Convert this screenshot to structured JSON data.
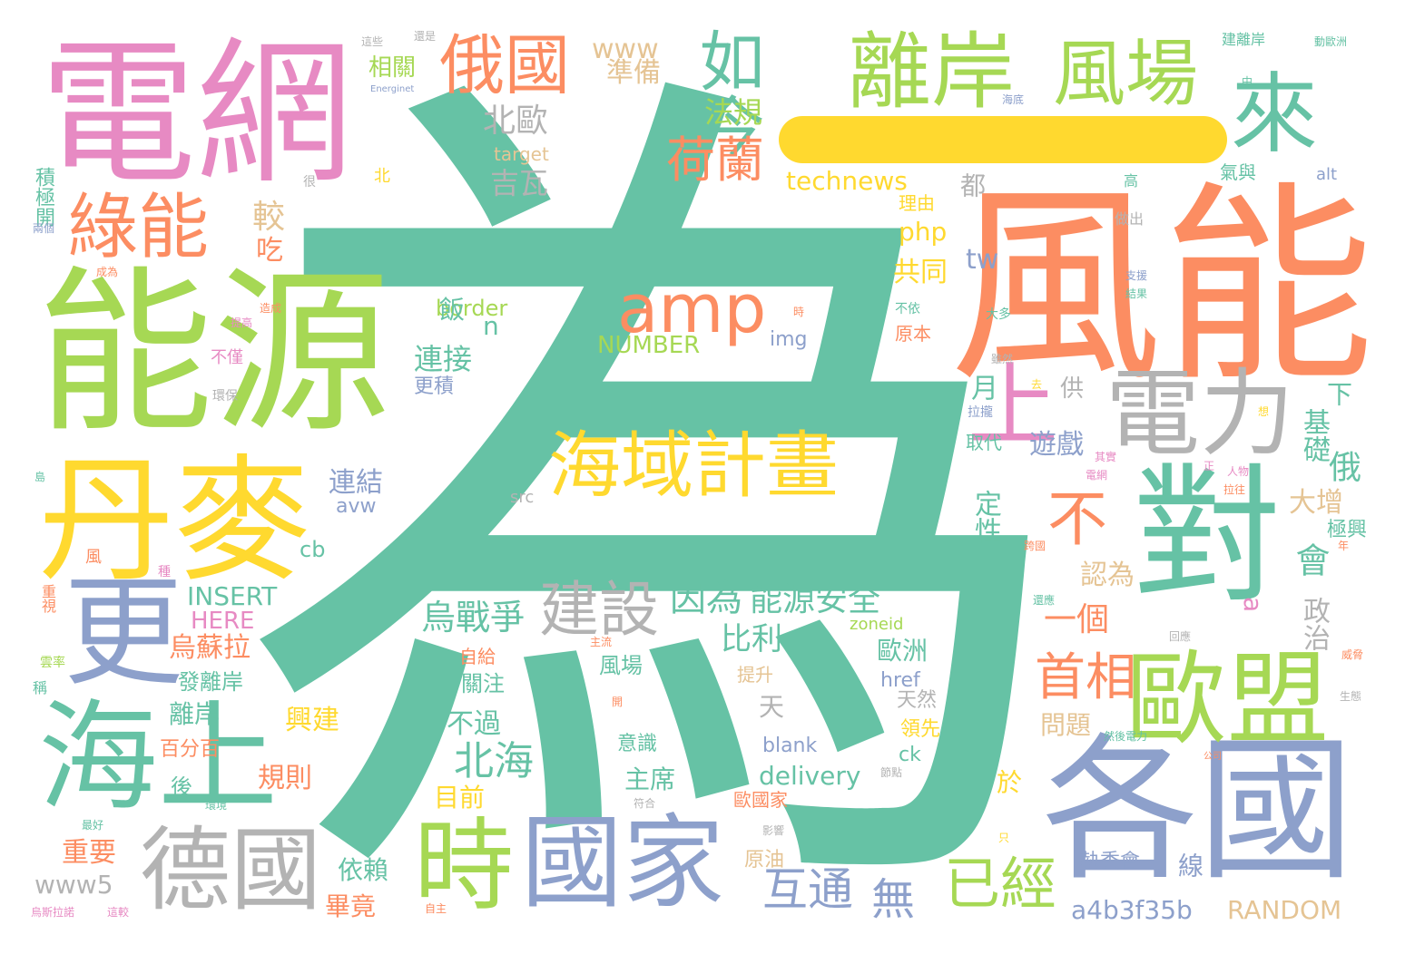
{
  "palette": {
    "teal": "#66c2a5",
    "orange": "#fc8d62",
    "blue": "#8da0cb",
    "pink": "#e78ac3",
    "green": "#a6d854",
    "yellow": "#ffd92f",
    "tan": "#e5c494",
    "gray": "#b3b3b3"
  },
  "words": [
    {
      "text": "為",
      "color": "teal"
    },
    {
      "text": "風能",
      "color": "orange"
    },
    {
      "text": "能源",
      "color": "green"
    },
    {
      "text": "電網",
      "color": "pink"
    },
    {
      "text": "丹麥",
      "color": "yellow"
    },
    {
      "text": "各國",
      "color": "blue"
    },
    {
      "text": "更",
      "color": "blue"
    },
    {
      "text": "海上",
      "color": "teal"
    },
    {
      "text": "對",
      "color": "teal"
    },
    {
      "text": "國家",
      "color": "blue"
    },
    {
      "text": "德國",
      "color": "gray"
    },
    {
      "text": "歐盟",
      "color": "green"
    },
    {
      "text": "時",
      "color": "green"
    },
    {
      "text": "離岸",
      "color": "green"
    },
    {
      "text": "風場",
      "color": "green"
    },
    {
      "text": "電力",
      "color": "gray"
    },
    {
      "text": "來",
      "color": "teal"
    },
    {
      "text": "海域計畫",
      "color": "yellow"
    },
    {
      "text": "amp",
      "color": "orange"
    },
    {
      "text": "上",
      "color": "pink"
    },
    {
      "text": "不",
      "color": "orange"
    },
    {
      "text": "如今",
      "color": "teal"
    },
    {
      "text": "俄國",
      "color": "orange"
    },
    {
      "text": "綠能",
      "color": "orange"
    },
    {
      "text": "建設",
      "color": "gray"
    },
    {
      "text": "荷蘭",
      "color": "orange"
    },
    {
      "text": "首相",
      "color": "orange"
    },
    {
      "text": "互通",
      "color": "blue"
    },
    {
      "text": "已經",
      "color": "green"
    },
    {
      "text": "無",
      "color": "blue"
    },
    {
      "text": "北海",
      "color": "teal"
    },
    {
      "text": "烏戰爭",
      "color": "teal"
    },
    {
      "text": "因為",
      "color": "teal"
    },
    {
      "text": "能源安全",
      "color": "teal"
    },
    {
      "text": "北歐",
      "color": "gray"
    },
    {
      "text": "technews",
      "color": "yellow"
    },
    {
      "text": "delivery",
      "color": "teal"
    },
    {
      "text": "NUMBER",
      "color": "green"
    },
    {
      "text": "INSERT",
      "color": "teal"
    },
    {
      "text": "HERE",
      "color": "pink"
    },
    {
      "text": "a4b3f35b",
      "color": "blue"
    },
    {
      "text": "RANDOM",
      "color": "tan"
    },
    {
      "text": "www",
      "color": "tan"
    },
    {
      "text": "www5",
      "color": "gray"
    },
    {
      "text": "吉瓦",
      "color": "gray"
    },
    {
      "text": "法規",
      "color": "green"
    },
    {
      "text": "準備",
      "color": "tan"
    },
    {
      "text": "相關",
      "color": "green"
    },
    {
      "text": "較",
      "color": "tan"
    },
    {
      "text": "吃",
      "color": "orange"
    },
    {
      "text": "php",
      "color": "yellow"
    },
    {
      "text": "共同",
      "color": "yellow"
    },
    {
      "text": "tw",
      "color": "blue"
    },
    {
      "text": "border",
      "color": "green"
    },
    {
      "text": "飯",
      "color": "teal"
    },
    {
      "text": "n",
      "color": "teal"
    },
    {
      "text": "img",
      "color": "blue"
    },
    {
      "text": "連接",
      "color": "teal"
    },
    {
      "text": "更積",
      "color": "blue"
    },
    {
      "text": "遊戲",
      "color": "blue"
    },
    {
      "text": "供",
      "color": "gray"
    },
    {
      "text": "月",
      "color": "teal"
    },
    {
      "text": "基礎",
      "color": "teal"
    },
    {
      "text": "下",
      "color": "teal"
    },
    {
      "text": "俄",
      "color": "teal"
    },
    {
      "text": "定性",
      "color": "teal"
    },
    {
      "text": "取代",
      "color": "teal"
    },
    {
      "text": "大增",
      "color": "tan"
    },
    {
      "text": "極興",
      "color": "teal"
    },
    {
      "text": "會",
      "color": "teal"
    },
    {
      "text": "認為",
      "color": "tan"
    },
    {
      "text": "一個",
      "color": "orange"
    },
    {
      "text": "政治",
      "color": "gray"
    },
    {
      "text": "a",
      "color": "pink"
    },
    {
      "text": "問題",
      "color": "tan"
    },
    {
      "text": "歐洲",
      "color": "teal"
    },
    {
      "text": "比利",
      "color": "teal"
    },
    {
      "text": "烏蘇拉",
      "color": "orange"
    },
    {
      "text": "發離岸",
      "color": "teal"
    },
    {
      "text": "離岸",
      "color": "teal"
    },
    {
      "text": "興建",
      "color": "yellow"
    },
    {
      "text": "百分百",
      "color": "orange"
    },
    {
      "text": "規則",
      "color": "orange"
    },
    {
      "text": "後",
      "color": "teal"
    },
    {
      "text": "重要",
      "color": "orange"
    },
    {
      "text": "依賴",
      "color": "teal"
    },
    {
      "text": "畢竟",
      "color": "orange"
    },
    {
      "text": "目前",
      "color": "yellow"
    },
    {
      "text": "不過",
      "color": "teal"
    },
    {
      "text": "主席",
      "color": "teal"
    },
    {
      "text": "天",
      "color": "gray"
    },
    {
      "text": "風場",
      "color": "teal"
    },
    {
      "text": "關注",
      "color": "teal"
    },
    {
      "text": "自給",
      "color": "orange"
    },
    {
      "text": "提升",
      "color": "tan"
    },
    {
      "text": "意識",
      "color": "teal"
    },
    {
      "text": "歐國家",
      "color": "orange"
    },
    {
      "text": "原油",
      "color": "tan"
    },
    {
      "text": "連結",
      "color": "blue"
    },
    {
      "text": "avw",
      "color": "blue"
    },
    {
      "text": "cb",
      "color": "teal"
    },
    {
      "text": "src",
      "color": "gray"
    },
    {
      "text": "target",
      "color": "tan"
    },
    {
      "text": "zoneid",
      "color": "green"
    },
    {
      "text": "href",
      "color": "blue"
    },
    {
      "text": "blank",
      "color": "blue"
    },
    {
      "text": "ck",
      "color": "teal"
    },
    {
      "text": "天然",
      "color": "gray"
    },
    {
      "text": "領先",
      "color": "yellow"
    },
    {
      "text": "於",
      "color": "yellow"
    },
    {
      "text": "執委會",
      "color": "blue"
    },
    {
      "text": "線",
      "color": "blue"
    },
    {
      "text": "原本",
      "color": "orange"
    },
    {
      "text": "理由",
      "color": "yellow"
    },
    {
      "text": "都",
      "color": "gray"
    },
    {
      "text": "高",
      "color": "teal"
    },
    {
      "text": "氣與",
      "color": "teal"
    },
    {
      "text": "alt",
      "color": "blue"
    },
    {
      "text": "做出",
      "color": "gray"
    },
    {
      "text": "積極開",
      "color": "teal"
    },
    {
      "text": "北",
      "color": "yellow"
    },
    {
      "text": "很",
      "color": "gray"
    },
    {
      "text": "不僅",
      "color": "pink"
    },
    {
      "text": "環保",
      "color": "gray"
    },
    {
      "text": "重視",
      "color": "orange"
    },
    {
      "text": "風",
      "color": "orange"
    },
    {
      "text": "稱",
      "color": "teal"
    },
    {
      "text": "烏斯拉諾",
      "color": "pink"
    },
    {
      "text": "這較",
      "color": "pink"
    },
    {
      "text": "自主",
      "color": "orange"
    },
    {
      "text": "還是",
      "color": "gray"
    },
    {
      "text": "這些",
      "color": "gray"
    },
    {
      "text": "Energinet",
      "color": "blue"
    },
    {
      "text": "建離岸",
      "color": "teal"
    },
    {
      "text": "動歐洲",
      "color": "teal"
    },
    {
      "text": "海底",
      "color": "blue"
    },
    {
      "text": "中",
      "color": "teal"
    },
    {
      "text": "支援",
      "color": "blue"
    },
    {
      "text": "結果",
      "color": "teal"
    },
    {
      "text": "不依",
      "color": "teal"
    },
    {
      "text": "大多",
      "color": "teal"
    },
    {
      "text": "雖然",
      "color": "gray"
    },
    {
      "text": "去",
      "color": "yellow"
    },
    {
      "text": "拉攏",
      "color": "blue"
    },
    {
      "text": "想",
      "color": "yellow"
    },
    {
      "text": "其實",
      "color": "pink"
    },
    {
      "text": "電網",
      "color": "pink"
    },
    {
      "text": "正",
      "color": "pink"
    },
    {
      "text": "人物",
      "color": "pink"
    },
    {
      "text": "拉往",
      "color": "orange"
    },
    {
      "text": "跨國",
      "color": "orange"
    },
    {
      "text": "還應",
      "color": "teal"
    },
    {
      "text": "生態",
      "color": "gray"
    },
    {
      "text": "然後電力",
      "color": "teal"
    },
    {
      "text": "符合",
      "color": "gray"
    },
    {
      "text": "節點",
      "color": "gray"
    },
    {
      "text": "影響",
      "color": "gray"
    },
    {
      "text": "只",
      "color": "yellow"
    },
    {
      "text": "回應",
      "color": "gray"
    },
    {
      "text": "年",
      "color": "orange"
    },
    {
      "text": "威脅",
      "color": "orange"
    },
    {
      "text": "公司",
      "color": "orange"
    },
    {
      "text": "造成",
      "color": "orange"
    },
    {
      "text": "主流",
      "color": "orange"
    },
    {
      "text": "開",
      "color": "orange"
    },
    {
      "text": "兩個",
      "color": "blue"
    },
    {
      "text": "成為",
      "color": "orange"
    },
    {
      "text": "最好",
      "color": "teal"
    },
    {
      "text": "環境",
      "color": "teal"
    },
    {
      "text": "島",
      "color": "teal"
    },
    {
      "text": "種",
      "color": "pink"
    },
    {
      "text": "提高",
      "color": "pink"
    },
    {
      "text": "時",
      "color": "orange"
    },
    {
      "text": "雲率",
      "color": "green"
    }
  ]
}
